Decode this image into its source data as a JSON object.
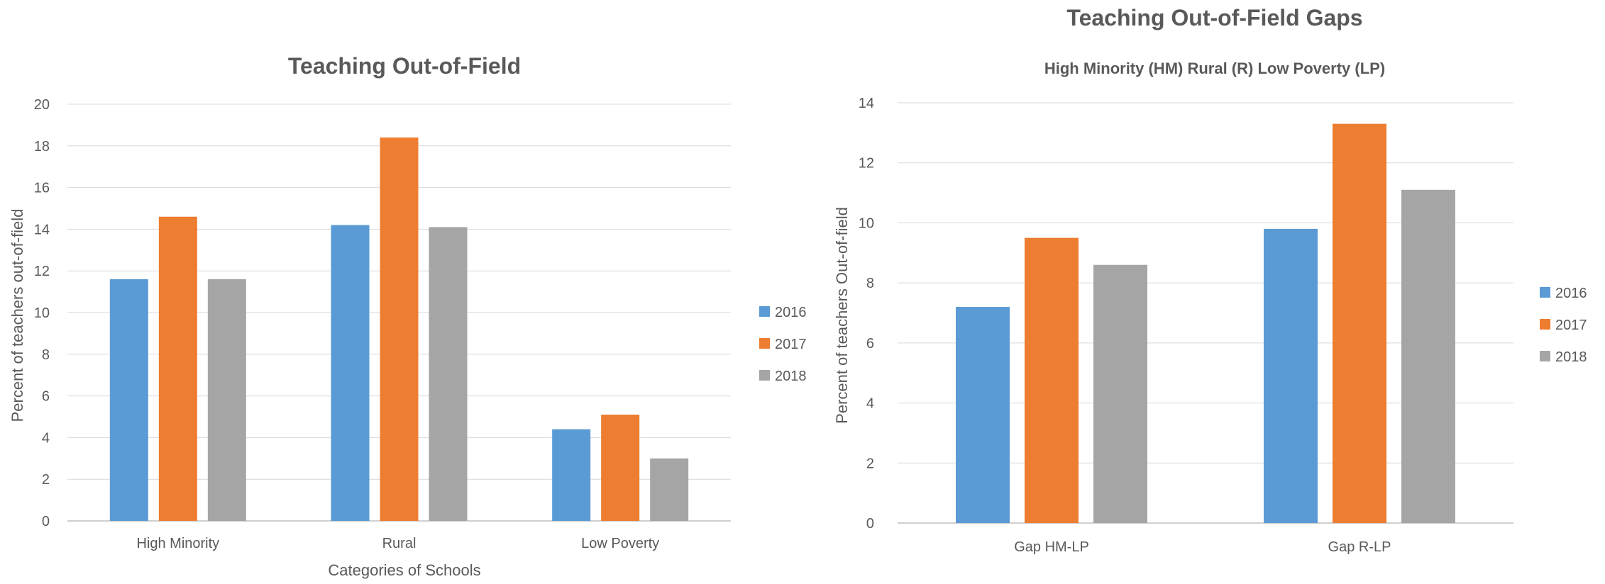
{
  "chart_data": [
    {
      "type": "bar",
      "title": "Teaching Out-of-Field",
      "subtitle": "",
      "xlabel": "Categories of Schools",
      "ylabel": "Percent of teachers out-of-field",
      "categories": [
        "High Minority",
        "Rural",
        "Low Poverty"
      ],
      "ylim": [
        0,
        20
      ],
      "yticks": [
        0,
        2,
        4,
        6,
        8,
        10,
        12,
        14,
        16,
        18,
        20
      ],
      "grid": true,
      "legend": "right",
      "series": [
        {
          "name": "2016",
          "color": "#5B9BD5",
          "values": [
            11.6,
            14.2,
            4.4
          ]
        },
        {
          "name": "2017",
          "color": "#ED7D31",
          "values": [
            14.6,
            18.4,
            5.1
          ]
        },
        {
          "name": "2018",
          "color": "#A5A5A5",
          "values": [
            11.6,
            14.1,
            3.0
          ]
        }
      ]
    },
    {
      "type": "bar",
      "title": "Teaching Out-of-Field Gaps",
      "subtitle": "High Minority (HM) Rural (R) Low Poverty (LP)",
      "xlabel": "",
      "ylabel": "Percent of teachers Out-of-field",
      "categories": [
        "Gap HM-LP",
        "Gap R-LP"
      ],
      "ylim": [
        0,
        14
      ],
      "yticks": [
        0,
        2,
        4,
        6,
        8,
        10,
        12,
        14
      ],
      "grid": true,
      "legend": "right",
      "series": [
        {
          "name": "2016",
          "color": "#5B9BD5",
          "values": [
            7.2,
            9.8
          ]
        },
        {
          "name": "2017",
          "color": "#ED7D31",
          "values": [
            9.5,
            13.3
          ]
        },
        {
          "name": "2018",
          "color": "#A5A5A5",
          "values": [
            8.6,
            11.1
          ]
        }
      ]
    }
  ]
}
